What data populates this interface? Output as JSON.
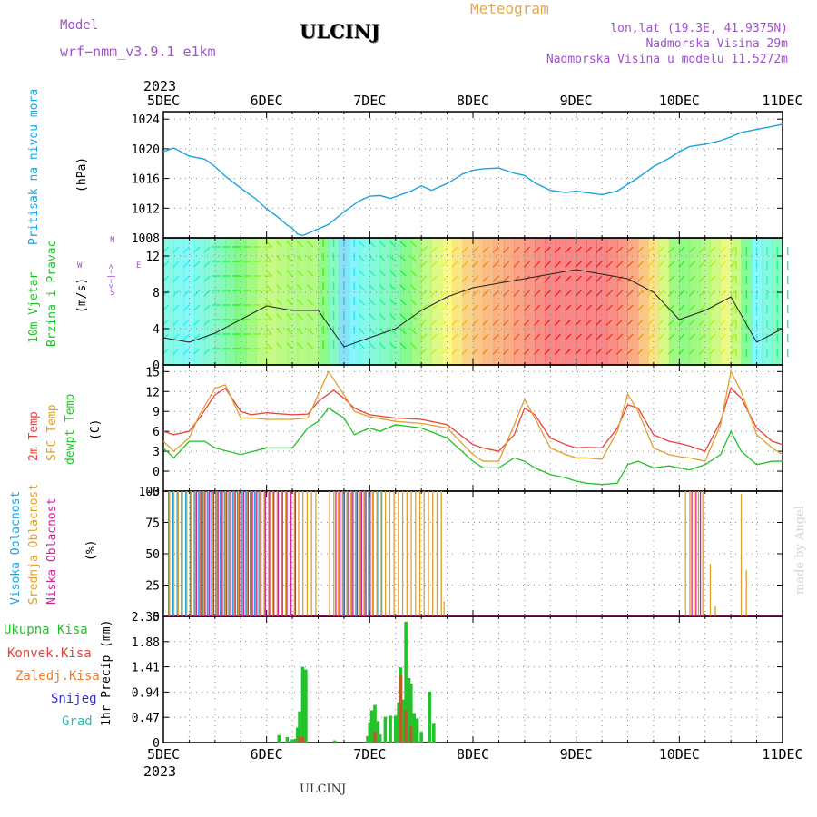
{
  "header": {
    "model_label": "Model",
    "model_name": "wrf−nmm_v3.9.1  e1km",
    "station": "ULCINJ",
    "product": "Meteogram",
    "lonlat": "lon,lat (19.3E, 41.9375N)",
    "elevation": "Nadmorska Visina 29m",
    "model_elevation": "Nadmorska Visina u modelu 11.5272m"
  },
  "footer": {
    "station": "ULCINJ",
    "credit": "made by Angel"
  },
  "colors": {
    "pressure": "#1ba3e0",
    "temp2m": "#e8413c",
    "sfc": "#e0a030",
    "dewpt": "#22c22a",
    "high_cloud": "#1ba3e0",
    "mid_cloud": "#e0a030",
    "low_cloud": "#d0239a",
    "total_precip": "#22c22a",
    "conv_precip": "#e8413c",
    "frz_precip": "#f07a2a",
    "snow": "#3030d0",
    "hail": "#22c2b0",
    "wind_label": "#22c22a",
    "axis": "#000000",
    "grid": "#888888"
  },
  "chart_data": [
    {
      "type": "line",
      "panel": "pressure",
      "title": "",
      "ylabel": "Pritisak na nivou mora",
      "unit": "(hPa)",
      "ylim": [
        1008,
        1025
      ],
      "yticks": [
        1008,
        1012,
        1016,
        1020,
        1024
      ],
      "xticks": [
        "5DEC",
        "6DEC",
        "7DEC",
        "8DEC",
        "9DEC",
        "10DEC",
        "11DEC"
      ],
      "xtick_year": "2023",
      "grid": true,
      "series": [
        {
          "x": [
            0,
            0.1,
            0.25,
            0.4,
            0.5,
            0.6,
            0.75,
            0.9,
            1.0,
            1.1,
            1.2,
            1.25,
            1.3,
            1.35,
            1.4,
            1.5,
            1.6,
            1.75,
            1.9,
            2.0,
            2.1,
            2.2,
            2.3,
            2.4,
            2.5,
            2.6,
            2.75,
            2.9,
            3.0,
            3.1,
            3.25,
            3.4,
            3.5,
            3.6,
            3.75,
            3.9,
            4.0,
            4.1,
            4.25,
            4.4,
            4.5,
            4.6,
            4.75,
            4.9,
            5.0,
            5.1,
            5.25,
            5.4,
            5.5,
            5.6,
            5.75,
            5.9,
            6.0
          ],
          "y": [
            1019.6,
            1020.1,
            1019.0,
            1018.6,
            1017.6,
            1016.3,
            1014.7,
            1013.2,
            1011.9,
            1010.9,
            1009.7,
            1009.3,
            1008.5,
            1008.3,
            1008.6,
            1009.2,
            1009.8,
            1011.5,
            1013.0,
            1013.6,
            1013.7,
            1013.3,
            1013.8,
            1014.3,
            1015.0,
            1014.4,
            1015.3,
            1016.6,
            1017.1,
            1017.3,
            1017.4,
            1016.7,
            1016.4,
            1015.4,
            1014.4,
            1014.1,
            1014.3,
            1014.1,
            1013.8,
            1014.3,
            1015.2,
            1016.1,
            1017.6,
            1018.7,
            1019.6,
            1020.3,
            1020.6,
            1021.1,
            1021.6,
            1022.2,
            1022.6,
            1023.0,
            1023.3
          ]
        }
      ]
    },
    {
      "type": "line",
      "panel": "wind",
      "ylabel": [
        "10m Vjetar",
        "Brzina i Pravac"
      ],
      "unit": "(m/s)",
      "compass": {
        "west": "W",
        "east": "E",
        "north": "N",
        "south": "S",
        "arrows": "<−|−>"
      },
      "ylim": [
        0,
        14
      ],
      "yticks": [
        0,
        4,
        8,
        12
      ],
      "grid": true,
      "series": [
        {
          "name": "wind speed",
          "x": [
            0,
            0.25,
            0.5,
            0.75,
            1.0,
            1.25,
            1.5,
            1.75,
            2.0,
            2.25,
            2.5,
            2.75,
            3.0,
            3.25,
            3.5,
            3.75,
            4.0,
            4.25,
            4.5,
            4.75,
            5.0,
            5.25,
            5.5,
            5.75,
            6.0
          ],
          "y": [
            3.0,
            2.5,
            3.5,
            5.0,
            6.5,
            6.0,
            6.0,
            2.0,
            3.0,
            4.0,
            6.0,
            7.5,
            8.5,
            9.0,
            9.5,
            10.0,
            10.5,
            10.0,
            9.5,
            8.0,
            5.0,
            6.0,
            7.5,
            2.5,
            4.0
          ]
        }
      ],
      "direction_bands": [
        {
          "from": 0.0,
          "to": 0.5,
          "dir": "NE"
        },
        {
          "from": 0.5,
          "to": 1.0,
          "dir": "E"
        },
        {
          "from": 1.0,
          "to": 1.5,
          "dir": "SE"
        },
        {
          "from": 1.5,
          "to": 1.9,
          "dir": "S"
        },
        {
          "from": 1.9,
          "to": 2.5,
          "dir": "SE"
        },
        {
          "from": 2.5,
          "to": 3.0,
          "dir": "NE"
        },
        {
          "from": 3.0,
          "to": 4.0,
          "dir": "NE"
        },
        {
          "from": 4.0,
          "to": 4.5,
          "dir": "NE"
        },
        {
          "from": 4.5,
          "to": 5.5,
          "dir": "NE"
        },
        {
          "from": 5.5,
          "to": 6.0,
          "dir": "N"
        }
      ]
    },
    {
      "type": "line",
      "panel": "temperature",
      "ylabel": [
        "2m Temp",
        "SFC Temp",
        "dewpt Temp"
      ],
      "unit": "(C)",
      "ylim": [
        -3,
        16
      ],
      "yticks": [
        -3,
        0,
        3,
        6,
        9,
        12,
        15
      ],
      "grid": true,
      "series": [
        {
          "name": "2m Temp",
          "x": [
            0,
            0.1,
            0.25,
            0.35,
            0.5,
            0.6,
            0.75,
            0.85,
            1.0,
            1.25,
            1.4,
            1.5,
            1.65,
            1.75,
            1.85,
            2.0,
            2.25,
            2.5,
            2.75,
            3.0,
            3.1,
            3.25,
            3.4,
            3.5,
            3.6,
            3.75,
            3.9,
            4.0,
            4.1,
            4.25,
            4.4,
            4.5,
            4.6,
            4.75,
            4.9,
            5.0,
            5.1,
            5.25,
            5.4,
            5.5,
            5.6,
            5.75,
            5.9,
            6.0
          ],
          "y": [
            6.0,
            5.5,
            6.0,
            8.0,
            11.5,
            12.5,
            9.0,
            8.5,
            8.8,
            8.5,
            8.6,
            10.5,
            12.2,
            11.0,
            9.5,
            8.5,
            8.0,
            7.8,
            7.0,
            4.0,
            3.5,
            3.0,
            5.5,
            9.5,
            8.5,
            5.0,
            4.0,
            3.5,
            3.6,
            3.5,
            6.5,
            10.0,
            9.5,
            5.5,
            4.5,
            4.2,
            3.8,
            3.0,
            7.5,
            12.5,
            11.0,
            6.5,
            4.5,
            4.0
          ]
        },
        {
          "name": "SFC Temp",
          "x": [
            0,
            0.1,
            0.25,
            0.35,
            0.5,
            0.6,
            0.75,
            0.85,
            1.0,
            1.25,
            1.4,
            1.5,
            1.6,
            1.75,
            1.85,
            2.0,
            2.25,
            2.5,
            2.75,
            3.0,
            3.1,
            3.25,
            3.4,
            3.5,
            3.6,
            3.75,
            3.9,
            4.0,
            4.1,
            4.25,
            4.4,
            4.5,
            4.6,
            4.75,
            4.9,
            5.0,
            5.1,
            5.25,
            5.4,
            5.5,
            5.6,
            5.75,
            5.9,
            6.0
          ],
          "y": [
            4.5,
            3.0,
            5.0,
            8.5,
            12.5,
            13.0,
            8.0,
            8.0,
            7.8,
            7.8,
            8.0,
            11.5,
            15.0,
            11.5,
            9.0,
            8.2,
            7.5,
            7.2,
            6.5,
            2.5,
            1.5,
            1.5,
            7.0,
            10.8,
            8.0,
            3.5,
            2.5,
            2.0,
            2.0,
            1.8,
            6.0,
            11.6,
            9.0,
            3.5,
            2.5,
            2.2,
            2.0,
            1.5,
            7.0,
            15.0,
            12.0,
            5.5,
            3.5,
            2.5
          ]
        },
        {
          "name": "dewpt Temp",
          "x": [
            0,
            0.1,
            0.25,
            0.4,
            0.5,
            0.75,
            1.0,
            1.25,
            1.4,
            1.5,
            1.6,
            1.75,
            1.85,
            2.0,
            2.1,
            2.25,
            2.5,
            2.75,
            3.0,
            3.1,
            3.25,
            3.4,
            3.5,
            3.6,
            3.75,
            3.9,
            4.0,
            4.1,
            4.25,
            4.4,
            4.5,
            4.6,
            4.75,
            4.9,
            5.0,
            5.1,
            5.25,
            5.4,
            5.5,
            5.6,
            5.75,
            5.9,
            6.0
          ],
          "y": [
            3.5,
            2.0,
            4.5,
            4.5,
            3.5,
            2.5,
            3.5,
            3.5,
            6.5,
            7.5,
            9.5,
            8.0,
            5.5,
            6.5,
            6.0,
            7.0,
            6.5,
            5.0,
            1.5,
            0.5,
            0.5,
            2.0,
            1.5,
            0.5,
            -0.5,
            -1.0,
            -1.5,
            -1.8,
            -2.0,
            -1.8,
            1.0,
            1.5,
            0.5,
            0.8,
            0.5,
            0.2,
            1.0,
            2.5,
            6.0,
            3.0,
            1.0,
            1.5,
            1.5
          ]
        }
      ]
    },
    {
      "type": "bar",
      "panel": "cloud",
      "ylabel": [
        "Visoka Oblacnost",
        "Srednja Oblacnost",
        "Niska Oblacnost"
      ],
      "unit": "(%)",
      "ylim": [
        0,
        100
      ],
      "yticks": [
        0,
        25,
        50,
        75,
        100
      ],
      "grid": true,
      "series": [
        {
          "name": "Visoka Oblacnost",
          "segments": [
            [
              0.05,
              0.95
            ],
            [
              1.7,
              2.15
            ]
          ],
          "value": 100
        },
        {
          "name": "Srednja Oblacnost",
          "segments": [
            [
              0.05,
              1.5
            ],
            [
              1.6,
              2.7
            ],
            [
              5.05,
              5.25
            ]
          ],
          "value": 100,
          "extra_bars": [
            [
              2.72,
              12
            ],
            [
              5.3,
              42
            ],
            [
              5.35,
              8
            ],
            [
              5.6,
              98
            ],
            [
              5.65,
              37
            ]
          ]
        },
        {
          "name": "Niska Oblacnost",
          "segments": [
            [
              0.3,
              1.3
            ],
            [
              1.65,
              2.0
            ],
            [
              5.1,
              5.2
            ]
          ],
          "value": 100
        }
      ]
    },
    {
      "type": "bar",
      "panel": "precipitation",
      "ylabel": "1hr Precip (mm)",
      "legend": [
        "Ukupna Kisa",
        "Konvek.Kisa",
        "Zaledj.Kisa",
        "Snijeg",
        "Grad"
      ],
      "ylim": [
        0,
        2.35
      ],
      "yticks": [
        0,
        0.47,
        0.94,
        1.41,
        1.88,
        2.35
      ],
      "grid": true,
      "total": {
        "x": [
          1.12,
          1.2,
          1.25,
          1.28,
          1.3,
          1.32,
          1.35,
          1.38,
          1.66,
          1.98,
          2.0,
          2.02,
          2.05,
          2.08,
          2.1,
          2.15,
          2.2,
          2.25,
          2.28,
          2.3,
          2.33,
          2.35,
          2.38,
          2.4,
          2.43,
          2.46,
          2.5,
          2.58,
          2.62
        ],
        "y": [
          0.14,
          0.1,
          0.06,
          0.07,
          0.28,
          0.58,
          1.41,
          1.36,
          0.04,
          0.12,
          0.38,
          0.6,
          0.7,
          0.4,
          0.15,
          0.48,
          0.5,
          0.5,
          0.75,
          1.4,
          0.8,
          2.25,
          1.2,
          1.1,
          0.55,
          0.45,
          0.2,
          0.95,
          0.35
        ]
      },
      "convective": {
        "x": [
          1.32,
          1.35,
          2.05,
          2.3,
          2.35,
          2.4
        ],
        "y": [
          0.1,
          0.1,
          0.2,
          1.25,
          0.6,
          0.3
        ]
      }
    }
  ]
}
